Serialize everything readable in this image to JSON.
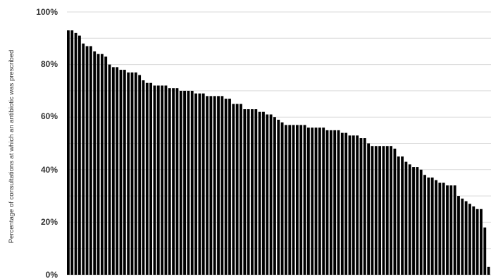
{
  "chart_data": {
    "type": "bar",
    "title": "",
    "xlabel": "",
    "ylabel": "Percentage of consultations at which an antibiotic was prescribed",
    "ylim": [
      0,
      100
    ],
    "y_ticks": [
      "0%",
      "20%",
      "40%",
      "60%",
      "80%",
      "100%"
    ],
    "grid": true,
    "bar_color": "#000000",
    "values": [
      93,
      93,
      92,
      91,
      88,
      87,
      87,
      85,
      84,
      84,
      83,
      80,
      79,
      79,
      78,
      78,
      77,
      77,
      77,
      76,
      74,
      73,
      73,
      72,
      72,
      72,
      72,
      71,
      71,
      71,
      70,
      70,
      70,
      70,
      69,
      69,
      69,
      68,
      68,
      68,
      68,
      68,
      67,
      67,
      65,
      65,
      65,
      63,
      63,
      63,
      63,
      62,
      62,
      61,
      61,
      60,
      59,
      58,
      57,
      57,
      57,
      57,
      57,
      57,
      56,
      56,
      56,
      56,
      56,
      55,
      55,
      55,
      55,
      54,
      54,
      53,
      53,
      53,
      52,
      52,
      50,
      49,
      49,
      49,
      49,
      49,
      49,
      48,
      45,
      45,
      43,
      42,
      41,
      41,
      40,
      38,
      37,
      37,
      36,
      35,
      35,
      34,
      34,
      34,
      30,
      29,
      28,
      27,
      26,
      25,
      25,
      18,
      3
    ]
  }
}
